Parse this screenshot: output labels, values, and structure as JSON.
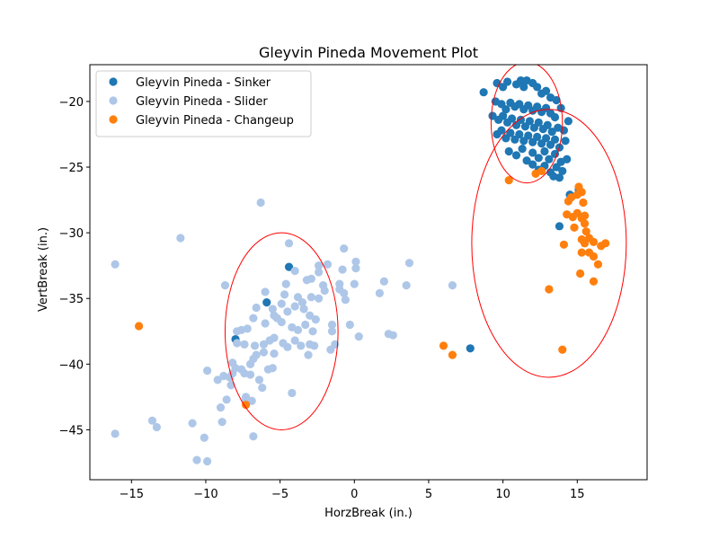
{
  "chart_data": {
    "type": "scatter",
    "title": "Gleyvin Pineda Movement Plot",
    "xlabel": "HorzBreak (in.)",
    "ylabel": "VertBreak (in.)",
    "xlim": [
      -17.8,
      19.7
    ],
    "ylim": [
      -48.8,
      -17.2
    ],
    "xticks": [
      -15,
      -10,
      -5,
      0,
      5,
      10,
      15
    ],
    "yticks": [
      -45,
      -40,
      -35,
      -30,
      -25,
      -20
    ],
    "grid": false,
    "legend_position": "top-left",
    "series": [
      {
        "name": "Gleyvin Pineda - Sinker",
        "color": "#1f77b4",
        "points": [
          [
            8.7,
            -19.3
          ],
          [
            9.6,
            -18.6
          ],
          [
            10.0,
            -18.9
          ],
          [
            10.3,
            -18.5
          ],
          [
            10.9,
            -18.7
          ],
          [
            11.2,
            -18.4
          ],
          [
            11.4,
            -18.9
          ],
          [
            11.6,
            -18.4
          ],
          [
            12.0,
            -18.6
          ],
          [
            12.3,
            -18.9
          ],
          [
            12.6,
            -19.4
          ],
          [
            12.9,
            -19.2
          ],
          [
            13.2,
            -19.7
          ],
          [
            13.6,
            -19.9
          ],
          [
            13.9,
            -20.5
          ],
          [
            9.5,
            -20.0
          ],
          [
            9.9,
            -20.2
          ],
          [
            10.2,
            -20.6
          ],
          [
            10.5,
            -20.1
          ],
          [
            10.8,
            -20.4
          ],
          [
            11.1,
            -20.2
          ],
          [
            11.4,
            -20.6
          ],
          [
            11.7,
            -20.3
          ],
          [
            12.0,
            -20.7
          ],
          [
            12.3,
            -20.4
          ],
          [
            12.6,
            -20.8
          ],
          [
            12.9,
            -20.5
          ],
          [
            13.2,
            -20.9
          ],
          [
            13.5,
            -21.2
          ],
          [
            9.3,
            -21.1
          ],
          [
            9.7,
            -21.4
          ],
          [
            10.0,
            -21.1
          ],
          [
            10.3,
            -21.6
          ],
          [
            10.6,
            -21.3
          ],
          [
            10.9,
            -21.8
          ],
          [
            11.2,
            -21.4
          ],
          [
            11.5,
            -21.9
          ],
          [
            11.8,
            -21.5
          ],
          [
            12.1,
            -22.0
          ],
          [
            12.4,
            -21.6
          ],
          [
            12.7,
            -22.1
          ],
          [
            13.0,
            -21.8
          ],
          [
            13.3,
            -22.3
          ],
          [
            13.7,
            -22.0
          ],
          [
            14.1,
            -22.2
          ],
          [
            14.4,
            -21.5
          ],
          [
            9.6,
            -22.5
          ],
          [
            9.9,
            -22.2
          ],
          [
            10.2,
            -22.8
          ],
          [
            10.5,
            -22.4
          ],
          [
            10.8,
            -22.9
          ],
          [
            11.1,
            -22.5
          ],
          [
            11.4,
            -23.0
          ],
          [
            11.7,
            -22.6
          ],
          [
            12.0,
            -23.1
          ],
          [
            12.3,
            -22.7
          ],
          [
            12.6,
            -23.2
          ],
          [
            12.9,
            -22.8
          ],
          [
            13.2,
            -23.3
          ],
          [
            13.5,
            -22.9
          ],
          [
            13.8,
            -23.5
          ],
          [
            14.2,
            -23.0
          ],
          [
            10.4,
            -23.8
          ],
          [
            10.9,
            -24.1
          ],
          [
            11.3,
            -23.6
          ],
          [
            11.6,
            -24.5
          ],
          [
            12.0,
            -23.9
          ],
          [
            12.4,
            -24.3
          ],
          [
            12.8,
            -23.8
          ],
          [
            13.1,
            -24.4
          ],
          [
            13.5,
            -24.0
          ],
          [
            13.9,
            -24.6
          ],
          [
            14.3,
            -24.4
          ],
          [
            12.0,
            -24.8
          ],
          [
            12.4,
            -25.2
          ],
          [
            12.8,
            -24.9
          ],
          [
            13.2,
            -25.4
          ],
          [
            13.6,
            -25.0
          ],
          [
            14.0,
            -25.3
          ],
          [
            13.4,
            -25.7
          ],
          [
            13.8,
            -25.8
          ],
          [
            14.5,
            -27.1
          ],
          [
            15.1,
            -26.7
          ],
          [
            13.8,
            -29.5
          ],
          [
            -5.9,
            -35.3
          ],
          [
            -4.4,
            -32.6
          ],
          [
            -8.0,
            -38.1
          ],
          [
            7.8,
            -38.8
          ]
        ]
      },
      {
        "name": "Gleyvin Pineda - Slider",
        "color": "#aec7e8",
        "points": [
          [
            -6.3,
            -27.7
          ],
          [
            -11.7,
            -30.4
          ],
          [
            -16.1,
            -32.4
          ],
          [
            -4.4,
            -30.8
          ],
          [
            -0.7,
            -31.2
          ],
          [
            3.7,
            -32.3
          ],
          [
            0.1,
            -32.2
          ],
          [
            0.1,
            -32.7
          ],
          [
            -0.8,
            -32.8
          ],
          [
            -2.4,
            -32.5
          ],
          [
            -2.4,
            -33.0
          ],
          [
            -1.8,
            -32.4
          ],
          [
            -4.0,
            -32.9
          ],
          [
            -8.7,
            -34.0
          ],
          [
            -6.0,
            -34.5
          ],
          [
            -4.6,
            -33.9
          ],
          [
            -3.2,
            -33.6
          ],
          [
            -2.9,
            -33.5
          ],
          [
            -2.1,
            -34.0
          ],
          [
            -2.0,
            -34.4
          ],
          [
            -1.0,
            -33.9
          ],
          [
            -1.0,
            -34.3
          ],
          [
            -0.7,
            -34.6
          ],
          [
            0.0,
            -33.9
          ],
          [
            2.0,
            -33.7
          ],
          [
            3.5,
            -34.0
          ],
          [
            6.6,
            -34.0
          ],
          [
            1.7,
            -34.6
          ],
          [
            -4.7,
            -34.7
          ],
          [
            -3.8,
            -34.9
          ],
          [
            -3.5,
            -35.3
          ],
          [
            -4.0,
            -35.6
          ],
          [
            -4.9,
            -35.4
          ],
          [
            -5.5,
            -35.8
          ],
          [
            -6.6,
            -35.7
          ],
          [
            -5.4,
            -36.3
          ],
          [
            -4.5,
            -36.0
          ],
          [
            -3.4,
            -35.8
          ],
          [
            -3.0,
            -36.3
          ],
          [
            -2.6,
            -36.6
          ],
          [
            -2.4,
            -35.0
          ],
          [
            -2.9,
            -34.9
          ],
          [
            -0.6,
            -35.1
          ],
          [
            -6.0,
            -36.9
          ],
          [
            -6.8,
            -36.5
          ],
          [
            -5.2,
            -36.5
          ],
          [
            -4.9,
            -36.8
          ],
          [
            -4.2,
            -37.2
          ],
          [
            -3.8,
            -37.4
          ],
          [
            -3.3,
            -37.0
          ],
          [
            -2.8,
            -37.5
          ],
          [
            -1.5,
            -37.0
          ],
          [
            -1.5,
            -37.5
          ],
          [
            -0.3,
            -37.0
          ],
          [
            0.3,
            -37.9
          ],
          [
            -7.2,
            -37.3
          ],
          [
            -7.6,
            -37.4
          ],
          [
            -7.9,
            -37.5
          ],
          [
            -5.4,
            -38.0
          ],
          [
            -5.7,
            -38.2
          ],
          [
            -6.1,
            -38.5
          ],
          [
            -6.7,
            -38.6
          ],
          [
            -4.8,
            -38.4
          ],
          [
            -4.5,
            -38.7
          ],
          [
            -4.0,
            -38.2
          ],
          [
            -3.6,
            -38.6
          ],
          [
            -3.0,
            -38.5
          ],
          [
            -2.7,
            -38.6
          ],
          [
            -1.6,
            -38.9
          ],
          [
            -1.3,
            -38.5
          ],
          [
            -7.4,
            -38.5
          ],
          [
            -7.9,
            -38.4
          ],
          [
            -5.4,
            -39.2
          ],
          [
            -3.1,
            -39.3
          ],
          [
            -6.8,
            -39.6
          ],
          [
            -7.0,
            -40.0
          ],
          [
            -6.6,
            -39.3
          ],
          [
            -6.1,
            -39.1
          ],
          [
            -5.5,
            -40.3
          ],
          [
            -5.8,
            -40.4
          ],
          [
            -8.2,
            -39.9
          ],
          [
            -8.0,
            -40.3
          ],
          [
            -7.6,
            -40.4
          ],
          [
            -7.4,
            -40.7
          ],
          [
            -7.0,
            -40.8
          ],
          [
            -8.2,
            -40.7
          ],
          [
            -8.4,
            -41.0
          ],
          [
            -8.8,
            -40.9
          ],
          [
            -9.2,
            -41.2
          ],
          [
            -9.9,
            -40.5
          ],
          [
            -6.4,
            -41.2
          ],
          [
            -6.2,
            -41.8
          ],
          [
            -7.3,
            -42.5
          ],
          [
            -6.9,
            -42.8
          ],
          [
            -8.3,
            -41.6
          ],
          [
            -8.6,
            -42.7
          ],
          [
            -9.0,
            -43.3
          ],
          [
            -4.2,
            -42.2
          ],
          [
            2.3,
            -37.7
          ],
          [
            2.6,
            -37.8
          ],
          [
            -7.3,
            -42.7
          ],
          [
            -8.9,
            -44.4
          ],
          [
            -10.9,
            -44.5
          ],
          [
            -13.6,
            -44.3
          ],
          [
            -13.3,
            -44.8
          ],
          [
            -16.1,
            -45.3
          ],
          [
            -10.1,
            -45.6
          ],
          [
            -6.8,
            -45.5
          ],
          [
            -10.6,
            -47.3
          ],
          [
            -9.9,
            -47.4
          ]
        ]
      },
      {
        "name": "Gleyvin Pineda - Changeup",
        "color": "#ff7f0e",
        "points": [
          [
            10.4,
            -26.0
          ],
          [
            12.2,
            -25.5
          ],
          [
            12.6,
            -25.3
          ],
          [
            15.1,
            -26.5
          ],
          [
            15.3,
            -26.9
          ],
          [
            14.6,
            -27.3
          ],
          [
            15.0,
            -27.1
          ],
          [
            15.4,
            -27.7
          ],
          [
            14.4,
            -27.6
          ],
          [
            14.3,
            -28.6
          ],
          [
            14.7,
            -28.8
          ],
          [
            15.0,
            -28.5
          ],
          [
            15.3,
            -28.9
          ],
          [
            15.5,
            -28.7
          ],
          [
            14.8,
            -29.6
          ],
          [
            15.5,
            -29.3
          ],
          [
            15.6,
            -29.9
          ],
          [
            15.3,
            -30.5
          ],
          [
            15.8,
            -30.4
          ],
          [
            16.1,
            -30.7
          ],
          [
            15.5,
            -30.8
          ],
          [
            14.1,
            -30.9
          ],
          [
            15.3,
            -31.5
          ],
          [
            15.8,
            -31.5
          ],
          [
            16.1,
            -31.8
          ],
          [
            16.6,
            -31.0
          ],
          [
            16.9,
            -30.8
          ],
          [
            16.4,
            -32.4
          ],
          [
            15.2,
            -33.1
          ],
          [
            16.1,
            -33.7
          ],
          [
            13.1,
            -34.3
          ],
          [
            -14.5,
            -37.1
          ],
          [
            6.0,
            -38.6
          ],
          [
            6.6,
            -39.3
          ],
          [
            14.0,
            -38.9
          ],
          [
            -7.3,
            -43.1
          ]
        ]
      }
    ],
    "ellipses": [
      {
        "series": "Gleyvin Pineda - Sinker",
        "cx": 11.6,
        "cy": -21.6,
        "rx": 2.4,
        "ry": 4.6,
        "color": "#ff0000"
      },
      {
        "series": "Gleyvin Pineda - Slider",
        "cx": -4.9,
        "cy": -37.5,
        "rx": 3.8,
        "ry": 7.5,
        "color": "#ff0000"
      },
      {
        "series": "Gleyvin Pineda - Changeup",
        "cx": 13.1,
        "cy": -30.8,
        "rx": 5.2,
        "ry": 10.2,
        "color": "#ff0000"
      }
    ]
  }
}
